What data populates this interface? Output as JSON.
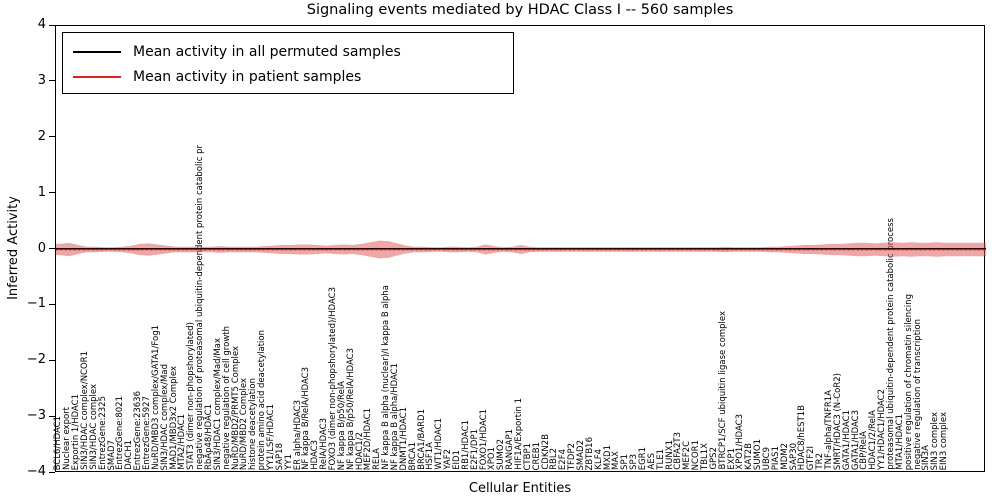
{
  "title": "Signaling events mediated by HDAC Class I -- 560 samples",
  "axes": {
    "xlabel": "Cellular Entities",
    "ylabel": "Inferred Activity",
    "ylim": [
      -4,
      4
    ],
    "yticks": [
      4,
      3,
      2,
      1,
      0,
      -1,
      -2,
      -3,
      -4
    ],
    "ytick_labels": [
      "4",
      "3",
      "2",
      "1",
      "0",
      "−1",
      "−2",
      "−3",
      "−4"
    ]
  },
  "legend": [
    {
      "label": "Mean activity in all permuted samples",
      "color": "#000000"
    },
    {
      "label": "Mean activity in patient samples",
      "color": "#dd2222"
    }
  ],
  "colors": {
    "permuted_line": "#000000",
    "patient_line": "#dd2222",
    "band_fill": "#d94f4f",
    "zero_dotted": "#cc0000"
  },
  "chart_data": {
    "type": "line",
    "title": "Signaling events mediated by HDAC Class I -- 560 samples",
    "xlabel": "Cellular Entities",
    "ylabel": "Inferred Activity",
    "ylim": [
      -4,
      4
    ],
    "legend_position": "upper left",
    "grid": false,
    "categories": [
      "BCL6/HDAC1",
      "Nuclear export",
      "Exportin 1/HDAC1",
      "SIN3/HDAC complex/NCOR1",
      "SIN3/HDAC complex",
      "EntrezGene:2325",
      "SMAD7",
      "EntrezGene:8021",
      "DACH1",
      "EntrezGene:23636",
      "EntrezGene:5927",
      "NuRD/MBD3 complex/GATA1/Fog1",
      "SIN3/HDAC complex/Mad",
      "MAD1/MBD3x2 Complex",
      "MTA2/HDAC1",
      "STAT3 (dimer non-phopshorylated)",
      "negative regulation of proteasomal ubiquitin-dependent protein catabolic pr",
      "RbAp48/HDAC1",
      "SIN3/HDAC1 complex/Mad/Max",
      "negative regulation of cell growth",
      "NuRD/MBD2/PRMT5 Complex",
      "NuRD/MBD2 Complex",
      "histone deacetylation",
      "protein amino acid deacetylation",
      "YY1/LSF/HDAC1",
      "SAP18",
      "YY1",
      "ER alpha/HDAC3",
      "NF kappa B/RelA/HDAC3",
      "HDAC3",
      "RelA/HDAC3",
      "FOXO3 (dimer non-phopshorylated)/HDAC3",
      "NF kappa B/p50/RelA",
      "NF kappa B/p50/RelA/HDAC3",
      "HDAC1/2",
      "MEF2D/HDAC1",
      "RELA",
      "NF kappa B alpha (nuclear)/I kappa B alpha",
      "NF kappa B alpha/HDAC1",
      "DNMT1/HDAC1",
      "BRCA1",
      "BRCA1/BARD1",
      "HSF1A",
      "WT1/HDAC1",
      "YAF2",
      "EID1",
      "RB1/HDAC1",
      "E2F1/DP1",
      "FOXO1/HDAC1",
      "XPO1",
      "SUMO2",
      "RANGAP1",
      "HIF1A/Exportin 1",
      "CTBP1",
      "CREB1",
      "CDKN2B",
      "RBL2",
      "E2F4",
      "TFDP2",
      "SMAD2",
      "ZBTB16",
      "KLF4",
      "MXD1",
      "MAX",
      "SP1",
      "SP3",
      "EGR1",
      "AES",
      "TLE1",
      "RUNX1",
      "CBFA2T3",
      "MEF2C",
      "NCOR1",
      "TBL1X",
      "GPS2",
      "BTRCP1/SCF ubiquitin ligase complex",
      "EXP1",
      "XPO1/HDAC3",
      "KAT2B",
      "SUMO1",
      "UBC9",
      "PIAS1",
      "MDM2",
      "SAP30",
      "HDAC8/hEST1B",
      "GTF2I",
      "TR2",
      "TNF-alpha/TNFR1A",
      "SMRT/HDAC3 (N-CoR2)",
      "GATA1/HDAC1",
      "GATA1/HDAC3",
      "CBP/RelA",
      "HDAC1/2/RelA",
      "YY1/HDAC1/HDAC2",
      "proteasomal ubiquitin-dependent protein catabolic process",
      "MTA1/HDAC1",
      "positive regulation of chromatin silencing",
      "negative regulation of transcription",
      "SIN3A",
      "SIN3 complex",
      "EIN3 complex"
    ],
    "series": [
      {
        "name": "Mean activity in all permuted samples",
        "color": "#000000",
        "constant_value": 0
      },
      {
        "name": "Mean activity in patient samples",
        "color": "#dd2222",
        "constant_value": 0
      }
    ],
    "band_halfwidth": [
      0.1,
      0.12,
      0.08,
      0.05,
      0.05,
      0.04,
      0.04,
      0.05,
      0.07,
      0.1,
      0.11,
      0.09,
      0.07,
      0.05,
      0.05,
      0.05,
      0.05,
      0.05,
      0.06,
      0.05,
      0.05,
      0.05,
      0.05,
      0.06,
      0.07,
      0.08,
      0.08,
      0.09,
      0.09,
      0.08,
      0.07,
      0.08,
      0.09,
      0.08,
      0.1,
      0.13,
      0.16,
      0.15,
      0.11,
      0.07,
      0.05,
      0.05,
      0.04,
      0.04,
      0.05,
      0.05,
      0.04,
      0.05,
      0.09,
      0.06,
      0.04,
      0.05,
      0.08,
      0.05,
      0.04,
      0.04,
      0.04,
      0.04,
      0.04,
      0.04,
      0.04,
      0.04,
      0.04,
      0.04,
      0.04,
      0.04,
      0.04,
      0.04,
      0.04,
      0.04,
      0.04,
      0.04,
      0.04,
      0.04,
      0.04,
      0.05,
      0.04,
      0.04,
      0.04,
      0.04,
      0.05,
      0.05,
      0.06,
      0.07,
      0.08,
      0.08,
      0.09,
      0.1,
      0.1,
      0.11,
      0.12,
      0.12,
      0.11,
      0.12,
      0.13,
      0.12,
      0.13,
      0.12,
      0.12,
      0.13,
      0.12
    ]
  }
}
